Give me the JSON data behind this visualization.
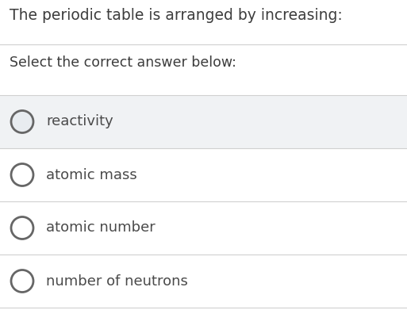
{
  "title": "The periodic table is arranged by increasing:",
  "subtitle": "Select the correct answer below:",
  "options": [
    "reactivity",
    "atomic mass",
    "atomic number",
    "number of neutrons"
  ],
  "bg_color": "#ffffff",
  "option_bg_colors": [
    "#f0f2f4",
    "#ffffff",
    "#ffffff",
    "#ffffff"
  ],
  "title_color": "#3d3d3d",
  "subtitle_color": "#3d3d3d",
  "option_text_color": "#4a4a4a",
  "circle_edge_color": "#666666",
  "circle_fill_color": "#ffffff",
  "first_circle_fill": "#e8ecf0",
  "separator_color": "#d0d0d0",
  "title_fontsize": 13.5,
  "subtitle_fontsize": 12.5,
  "option_fontsize": 13,
  "fig_width": 5.13,
  "fig_height": 3.91,
  "dpi": 100
}
